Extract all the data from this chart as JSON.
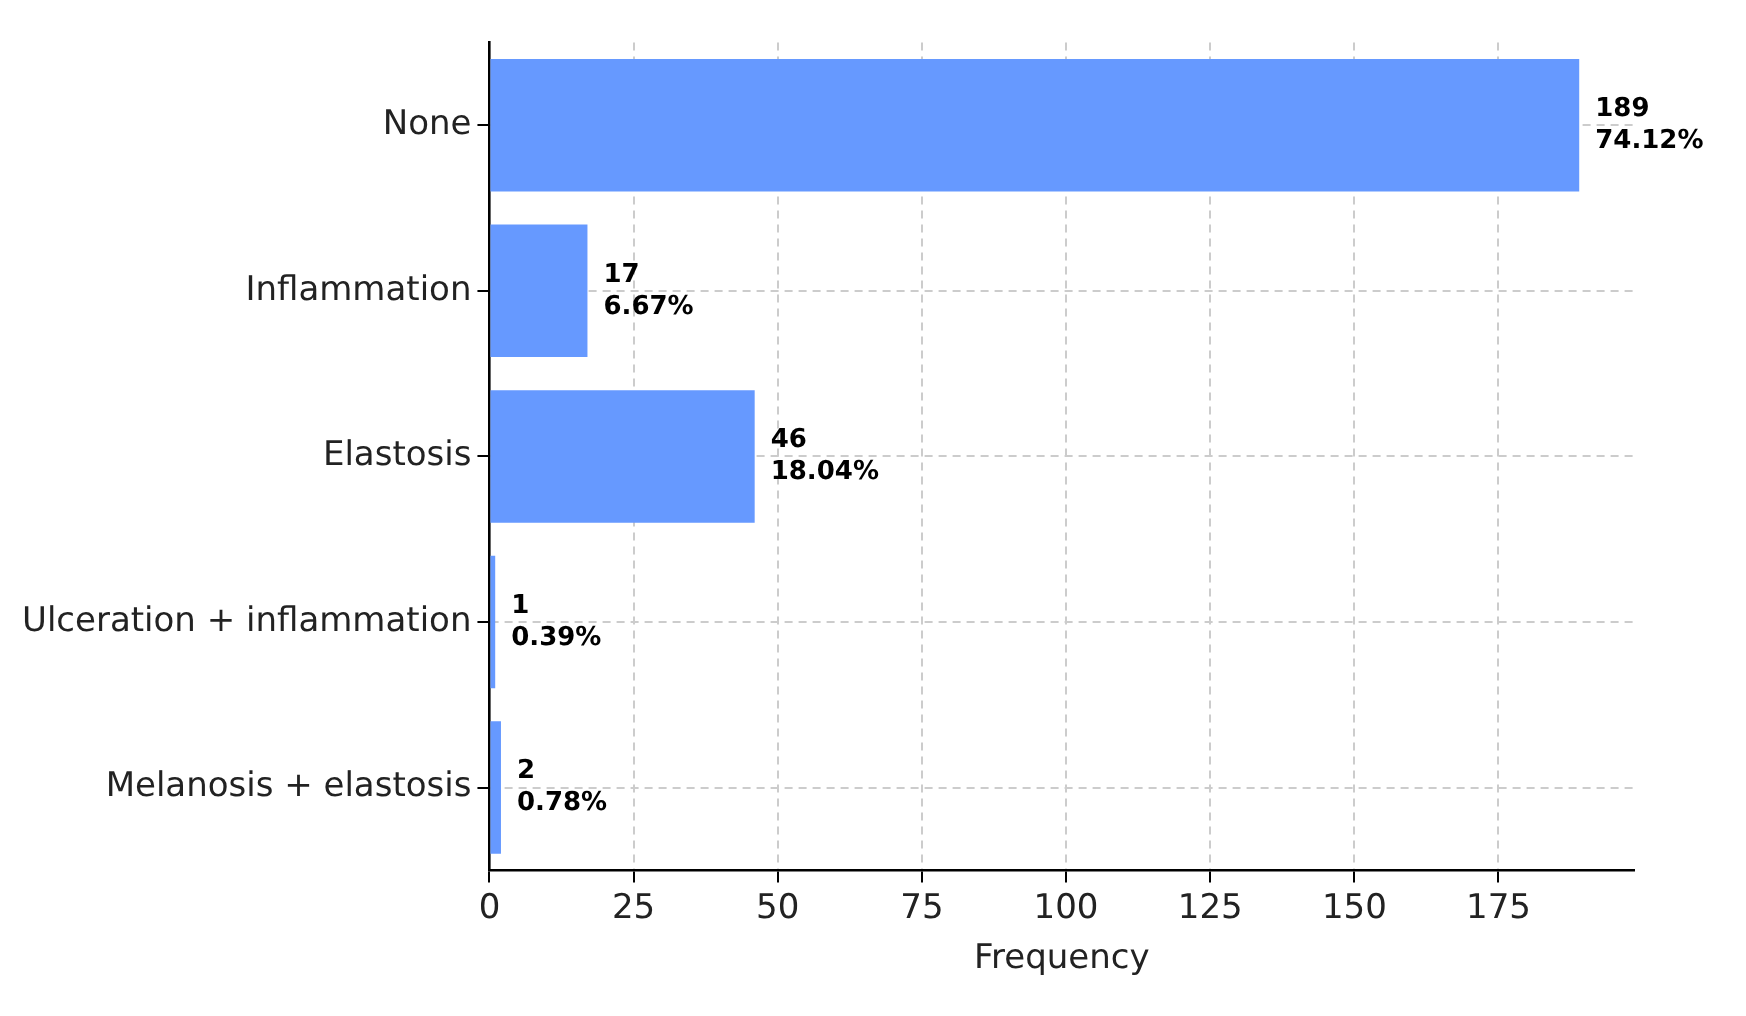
{
  "chart_data": {
    "type": "bar",
    "orientation": "horizontal",
    "xlabel": "Frequency",
    "categories": [
      "None",
      "Inflammation",
      "Elastosis",
      "Ulceration + inflammation",
      "Melanosis + elastosis"
    ],
    "values": [
      189,
      17,
      46,
      1,
      2
    ],
    "value_labels": [
      "189\n74.12%",
      "17\n6.67%",
      "46\n18.04%",
      "1\n0.39%",
      "2\n0.78%"
    ],
    "color": "#6699ff",
    "xlim": [
      0,
      198.5
    ],
    "xticks": [
      0,
      25,
      50,
      75,
      100,
      125,
      150,
      175
    ],
    "grid": true
  }
}
